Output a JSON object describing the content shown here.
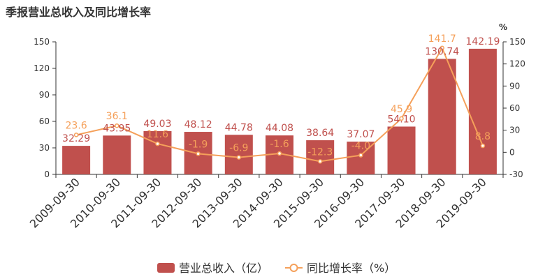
{
  "chart_data": {
    "type": "bar",
    "title": "季报营业总收入及同比增长率",
    "categories": [
      "2009-09-30",
      "2010-09-30",
      "2011-09-30",
      "2012-09-30",
      "2013-09-30",
      "2014-09-30",
      "2015-09-30",
      "2016-09-30",
      "2017-09-30",
      "2018-09-30",
      "2019-09-30"
    ],
    "series": [
      {
        "name": "营业总收入（亿）",
        "type": "bar",
        "axis": "left",
        "color": "#c0504d",
        "values": [
          32.29,
          43.95,
          49.03,
          48.12,
          44.78,
          44.08,
          38.64,
          37.07,
          54.1,
          130.74,
          142.19
        ],
        "labels": [
          "32.29",
          "43.95",
          "49.03",
          "48.12",
          "44.78",
          "44.08",
          "38.64",
          "37.07",
          "54.10",
          "130.74",
          "142.19"
        ]
      },
      {
        "name": "同比增长率（%）",
        "type": "line",
        "axis": "right",
        "color": "#f5a05a",
        "values": [
          23.6,
          36.1,
          11.6,
          -1.9,
          -6.9,
          -1.6,
          -12.3,
          -4.0,
          45.9,
          141.7,
          8.8
        ],
        "labels": [
          "23.6",
          "36.1",
          "11.6",
          "-1.9",
          "-6.9",
          "-1.6",
          "-12.3",
          "-4.0",
          "45.9",
          "141.7",
          "8.8"
        ]
      }
    ],
    "y_left": {
      "min": 0,
      "max": 150,
      "ticks": [
        0,
        30,
        60,
        90,
        120,
        150
      ]
    },
    "y_right": {
      "min": -30,
      "max": 150,
      "ticks": [
        -30,
        0,
        30,
        60,
        90,
        120,
        150
      ],
      "unit": "%"
    },
    "legend_position": "bottom-center",
    "grid": false
  }
}
